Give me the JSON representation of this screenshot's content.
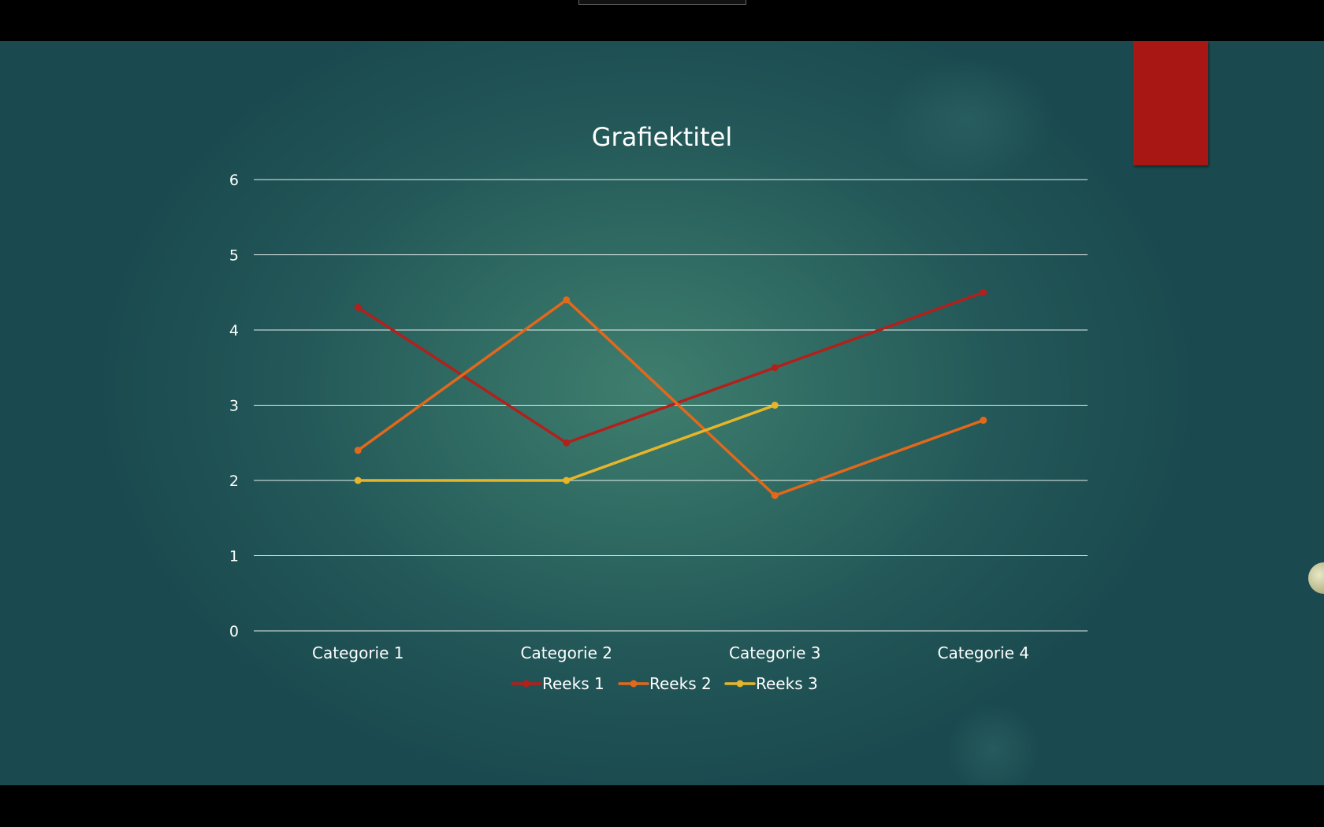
{
  "chart_data": {
    "type": "line",
    "title": "Grafiektitel",
    "xlabel": "",
    "ylabel": "",
    "categories": [
      "Categorie 1",
      "Categorie 2",
      "Categorie 3",
      "Categorie 4"
    ],
    "ylim": [
      0,
      6
    ],
    "yticks": [
      "0",
      "1",
      "2",
      "3",
      "4",
      "5",
      "6"
    ],
    "grid": true,
    "legend_position": "bottom",
    "series": [
      {
        "name": "Reeks 1",
        "color": "#b3201c",
        "values": [
          4.3,
          2.5,
          3.5,
          4.5
        ]
      },
      {
        "name": "Reeks 2",
        "color": "#e2681b",
        "values": [
          2.4,
          4.4,
          1.8,
          2.8
        ]
      },
      {
        "name": "Reeks 3",
        "color": "#e6b52a",
        "values": [
          2.0,
          2.0,
          3.0,
          null
        ]
      }
    ]
  },
  "colors": {
    "background_center": "#3f7e6e",
    "background_edge": "#1a4a4f",
    "gridline": "#ffffff",
    "accent_tag": "#a91715"
  }
}
